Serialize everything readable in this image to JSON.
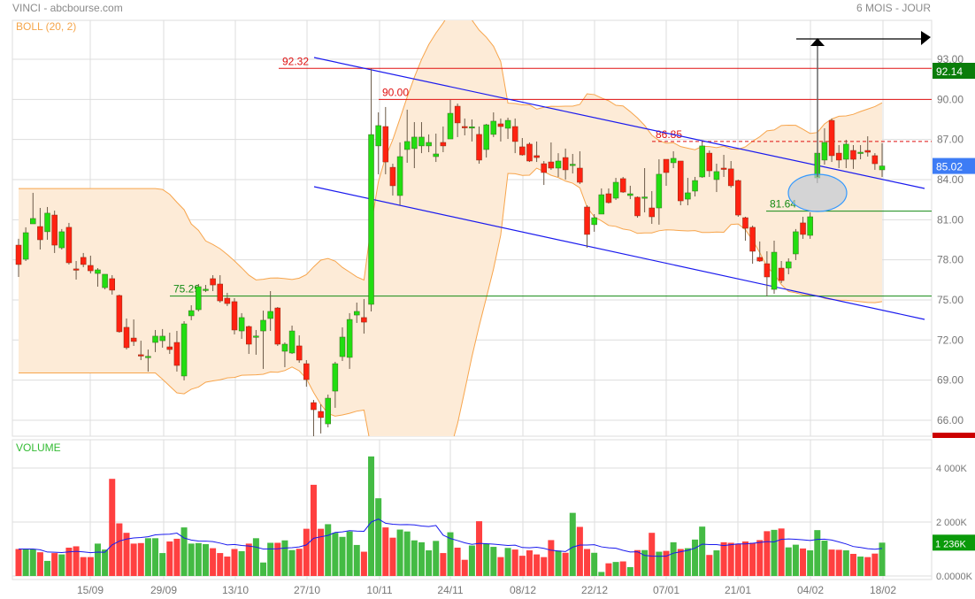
{
  "header": {
    "title": "VINCI - abcbourse.com",
    "period": "6 MOIS - JOUR"
  },
  "chart_data": [
    {
      "type": "candlestick",
      "indicator_label": "BOLL (20, 2)",
      "x_tick_labels": [
        "15/09",
        "29/09",
        "13/10",
        "27/10",
        "10/11",
        "24/11",
        "08/12",
        "22/12",
        "07/01",
        "21/01",
        "04/02",
        "18/02"
      ],
      "y_tick_labels": [
        "93.00",
        "90.00",
        "87.00",
        "84.00",
        "81.00",
        "78.00",
        "75.00",
        "72.00",
        "69.00",
        "66.00"
      ],
      "y_ticks": [
        93,
        90,
        87,
        84,
        81,
        78,
        75,
        72,
        69,
        66
      ],
      "ylim": [
        64.9,
        94.5
      ],
      "grid": true,
      "colors": {
        "up": "#22dd11",
        "down": "#ff2211",
        "band_fill": "#fdebd7",
        "band_line": "#f7a54c",
        "channel": "#1a1aee",
        "last_price_tag": "#3d7cf5",
        "high_tag": "#0a7d0a"
      },
      "price_tags": [
        {
          "label": "92.14",
          "value": 92.14,
          "color": "#0a7d0a"
        },
        {
          "label": "85.02",
          "value": 85.02,
          "color": "#3d7cf5"
        }
      ],
      "levels": [
        {
          "label": "92.32",
          "value": 92.32,
          "color": "#e01010",
          "dashed": false
        },
        {
          "label": "90.00",
          "value": 90.0,
          "color": "#e01010",
          "dashed": false
        },
        {
          "label": "86.85",
          "value": 86.85,
          "color": "#e01010",
          "dashed": true
        },
        {
          "label": "81.64",
          "value": 81.64,
          "color": "#138a13",
          "dashed": false
        },
        {
          "label": "75.29",
          "value": 75.29,
          "color": "#138a13",
          "dashed": false
        }
      ],
      "ohlc": [
        [
          79.1,
          79.57,
          76.72,
          77.65
        ],
        [
          78.04,
          80.43,
          77.91,
          80.03
        ],
        [
          80.69,
          83.01,
          80.69,
          81.09
        ],
        [
          80.49,
          81.88,
          78.77,
          79.5
        ],
        [
          80.1,
          81.95,
          79.5,
          81.49
        ],
        [
          81.35,
          81.68,
          78.51,
          79.1
        ],
        [
          78.9,
          80.3,
          78.77,
          80.1
        ],
        [
          80.43,
          80.76,
          77.65,
          77.78
        ],
        [
          77.32,
          77.91,
          76.52,
          77.3
        ],
        [
          78.18,
          78.51,
          77.45,
          77.65
        ],
        [
          77.58,
          78.31,
          76.98,
          77.18
        ],
        [
          76.98,
          77.38,
          75.99,
          77.25
        ],
        [
          75.92,
          76.92,
          75.79,
          76.92
        ],
        [
          76.59,
          76.85,
          75.4,
          75.73
        ],
        [
          75.33,
          75.4,
          72.55,
          72.62
        ],
        [
          72.95,
          73.61,
          71.29,
          71.43
        ],
        [
          72.15,
          73.54,
          71.56,
          71.89
        ],
        [
          70.9,
          71.95,
          70.5,
          70.88
        ],
        [
          70.76,
          71.29,
          69.64,
          70.78
        ],
        [
          71.82,
          72.75,
          71.1,
          72.29
        ],
        [
          71.95,
          72.82,
          71.43,
          72.29
        ],
        [
          71.49,
          72.55,
          70.96,
          71.29
        ],
        [
          71.82,
          72.68,
          69.64,
          70.1
        ],
        [
          69.31,
          73.41,
          68.98,
          73.21
        ],
        [
          73.81,
          74.6,
          73.48,
          74.2
        ],
        [
          74.27,
          76.19,
          74.14,
          75.99
        ],
        [
          75.79,
          76.12,
          75.59,
          75.8
        ],
        [
          76.59,
          76.85,
          75.66,
          76.12
        ],
        [
          76.19,
          76.85,
          74.8,
          74.93
        ],
        [
          75.13,
          75.53,
          74.54,
          74.73
        ],
        [
          74.87,
          75.13,
          72.42,
          72.75
        ],
        [
          72.68,
          74.01,
          72.09,
          73.68
        ],
        [
          73.01,
          73.08,
          70.96,
          71.69
        ],
        [
          72.29,
          72.75,
          70.9,
          72.3
        ],
        [
          72.68,
          74.2,
          69.84,
          73.48
        ],
        [
          73.61,
          75.66,
          72.68,
          74.14
        ],
        [
          74.4,
          74.47,
          71.56,
          71.69
        ],
        [
          71.16,
          71.82,
          69.97,
          71.69
        ],
        [
          71.03,
          73.08,
          70.96,
          72.68
        ],
        [
          71.56,
          72.35,
          70.3,
          70.5
        ],
        [
          70.23,
          70.5,
          68.51,
          69.04
        ],
        [
          67.32,
          67.52,
          64.68,
          66.79
        ],
        [
          66.66,
          67.19,
          65.01,
          66.2
        ],
        [
          65.73,
          67.92,
          65.47,
          67.65
        ],
        [
          68.18,
          70.37,
          66.93,
          70.23
        ],
        [
          70.76,
          72.95,
          70.43,
          72.22
        ],
        [
          70.7,
          74.01,
          69.84,
          73.54
        ],
        [
          73.87,
          74.8,
          73.28,
          74.14
        ],
        [
          73.68,
          75.07,
          72.48,
          73.34
        ],
        [
          74.67,
          92.32,
          74.14,
          87.37
        ],
        [
          86.52,
          89.03,
          84.4,
          88.04
        ],
        [
          87.97,
          89.43,
          84.4,
          85.32
        ],
        [
          84.92,
          85.19,
          82.81,
          83.54
        ],
        [
          82.81,
          86.78,
          82.08,
          85.72
        ],
        [
          86.25,
          89.23,
          85.26,
          86.85
        ],
        [
          86.32,
          88.3,
          84.86,
          87.18
        ],
        [
          86.52,
          88.3,
          85.98,
          87.18
        ],
        [
          86.52,
          87.38,
          86.05,
          86.78
        ],
        [
          85.72,
          87.44,
          85.32,
          85.92
        ],
        [
          86.78,
          87.97,
          86.05,
          86.52
        ],
        [
          87.04,
          89.96,
          87.04,
          88.96
        ],
        [
          89.49,
          89.69,
          87.18,
          88.24
        ],
        [
          87.97,
          88.57,
          87.31,
          87.9
        ],
        [
          87.9,
          88.5,
          86.85,
          87.95
        ],
        [
          87.38,
          87.97,
          85.19,
          85.46
        ],
        [
          86.25,
          88.17,
          85.65,
          88.1
        ],
        [
          87.38,
          89.03,
          87.18,
          88.37
        ],
        [
          88.17,
          88.57,
          86.85,
          87.97
        ],
        [
          87.84,
          88.63,
          87.04,
          88.43
        ],
        [
          87.97,
          88.57,
          85.98,
          86.85
        ],
        [
          86.45,
          87.11,
          85.79,
          85.85
        ],
        [
          86.65,
          86.78,
          85.32,
          85.39
        ],
        [
          85.79,
          86.85,
          85.32,
          85.65
        ],
        [
          85.19,
          85.39,
          83.6,
          84.53
        ],
        [
          85.32,
          86.78,
          84.73,
          84.86
        ],
        [
          84.86,
          85.98,
          84.2,
          85.39
        ],
        [
          85.65,
          86.32,
          84.0,
          84.73
        ],
        [
          85.12,
          85.92,
          84.46,
          85.15
        ],
        [
          84.86,
          86.12,
          83.67,
          83.8
        ],
        [
          81.95,
          82.08,
          78.9,
          79.9
        ],
        [
          80.63,
          81.42,
          80.1,
          81.15
        ],
        [
          81.42,
          83.34,
          81.42,
          82.87
        ],
        [
          82.94,
          83.34,
          82.21,
          82.28
        ],
        [
          82.61,
          84.13,
          82.48,
          83.8
        ],
        [
          84.07,
          84.2,
          83.01,
          83.07
        ],
        [
          82.81,
          83.54,
          82.54,
          82.94
        ],
        [
          82.68,
          82.74,
          81.15,
          81.29
        ],
        [
          82.68,
          84.86,
          81.55,
          82.7
        ],
        [
          81.88,
          83.14,
          80.69,
          81.22
        ],
        [
          81.88,
          85.52,
          80.63,
          84.4
        ],
        [
          85.52,
          85.52,
          83.54,
          84.53
        ],
        [
          85.26,
          86.12,
          84.86,
          85.59
        ],
        [
          85.39,
          85.39,
          82.08,
          82.41
        ],
        [
          82.54,
          84.13,
          82.08,
          83.01
        ],
        [
          83.14,
          84.2,
          82.74,
          83.93
        ],
        [
          84.2,
          86.85,
          84.13,
          86.52
        ],
        [
          85.98,
          86.18,
          84.2,
          84.66
        ],
        [
          84.0,
          85.19,
          83.07,
          84.6
        ],
        [
          84.86,
          85.85,
          84.2,
          84.8
        ],
        [
          84.8,
          85.39,
          83.4,
          83.54
        ],
        [
          83.93,
          84.0,
          81.22,
          81.35
        ],
        [
          81.15,
          81.22,
          79.43,
          80.36
        ],
        [
          80.43,
          80.56,
          77.71,
          78.64
        ],
        [
          78.18,
          79.37,
          77.85,
          77.91
        ],
        [
          77.71,
          78.64,
          75.26,
          76.72
        ],
        [
          75.79,
          79.43,
          75.46,
          78.57
        ],
        [
          77.38,
          77.91,
          76.26,
          76.45
        ],
        [
          77.38,
          78.11,
          76.92,
          77.85
        ],
        [
          78.44,
          80.3,
          77.98,
          80.1
        ],
        [
          80.76,
          81.22,
          79.57,
          79.9
        ],
        [
          79.83,
          81.55,
          79.57,
          81.22
        ],
        [
          84.13,
          85.85,
          83.74,
          85.98
        ],
        [
          85.46,
          87.84,
          85.12,
          86.78
        ],
        [
          88.43,
          88.57,
          85.32,
          85.79
        ],
        [
          85.98,
          86.58,
          84.86,
          85.46
        ],
        [
          85.52,
          86.98,
          84.86,
          86.65
        ],
        [
          86.18,
          86.58,
          84.8,
          85.52
        ],
        [
          85.98,
          86.58,
          85.52,
          86.05
        ],
        [
          86.18,
          87.24,
          85.72,
          86.05
        ],
        [
          85.79,
          85.98,
          84.73,
          85.19
        ],
        [
          84.73,
          86.72,
          84.2,
          85.02
        ]
      ]
    },
    {
      "type": "bar",
      "title": "VOLUME",
      "unit": "K",
      "y_tick_labels": [
        "4 000K",
        "2 000K",
        "0.0000K"
      ],
      "y_ticks": [
        4000,
        2000,
        0
      ],
      "last_volume_tag": "1 236K",
      "tag_color": "#0a9a0a",
      "ma_color": "#1a1aee",
      "values": [
        1000,
        1000,
        1000,
        880,
        560,
        850,
        800,
        1050,
        1100,
        700,
        700,
        1200,
        980,
        3600,
        1950,
        1600,
        1200,
        1220,
        1400,
        1400,
        850,
        1280,
        1380,
        1800,
        1200,
        1220,
        1180,
        1030,
        850,
        720,
        1000,
        920,
        1200,
        1400,
        500,
        1230,
        1230,
        1320,
        960,
        1010,
        1750,
        3380,
        1750,
        1920,
        1600,
        1450,
        1650,
        1150,
        900,
        4430,
        2880,
        1800,
        1420,
        1720,
        1650,
        1320,
        1250,
        950,
        1300,
        850,
        1620,
        1050,
        600,
        1130,
        2030,
        1200,
        1080,
        700,
        1040,
        980,
        750,
        950,
        800,
        700,
        1330,
        940,
        860,
        2340,
        1820,
        1000,
        860,
        150,
        470,
        520,
        540,
        330,
        960,
        960,
        1600,
        900,
        930,
        1250,
        1000,
        1030,
        1350,
        1830,
        780,
        950,
        1250,
        1230,
        1200,
        1280,
        1230,
        1330,
        1660,
        1710,
        1760,
        1060,
        1160,
        1020,
        950,
        1700,
        1310,
        980,
        970,
        950,
        820,
        720,
        700,
        830,
        1236
      ]
    }
  ]
}
